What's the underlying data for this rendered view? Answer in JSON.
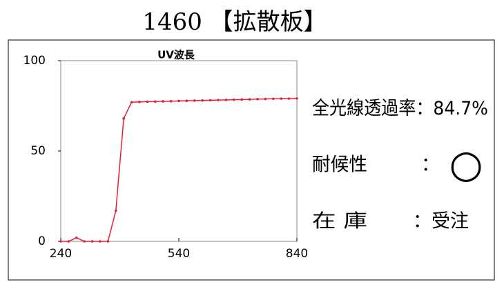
{
  "header": {
    "title": "1460 【拡散板】"
  },
  "chart_data": {
    "type": "line",
    "title": "UV波長",
    "x": [
      240,
      260,
      280,
      300,
      320,
      340,
      360,
      380,
      400,
      420,
      440,
      460,
      480,
      500,
      520,
      540,
      560,
      580,
      600,
      620,
      640,
      660,
      680,
      700,
      720,
      740,
      760,
      780,
      800,
      820,
      840
    ],
    "series": [
      {
        "color": "#e0203c",
        "values": [
          0,
          0,
          2,
          0,
          0,
          0,
          0,
          17,
          68,
          77,
          77.2,
          77.3,
          77.4,
          77.5,
          77.6,
          77.7,
          77.8,
          77.9,
          78,
          78.1,
          78.2,
          78.3,
          78.4,
          78.5,
          78.6,
          78.7,
          78.8,
          78.9,
          79,
          79,
          79.1
        ]
      }
    ],
    "xlim": [
      240,
      840
    ],
    "xticks": [
      240,
      540,
      840
    ],
    "ylim": [
      0,
      100
    ],
    "yticks": [
      0,
      50,
      100
    ],
    "grid": false
  },
  "info": [
    {
      "label": "全光線透過率",
      "value": "：84.7%"
    },
    {
      "label": "耐候性",
      "value": "：",
      "mark": "○"
    },
    {
      "label": "在 庫",
      "value": "：受注"
    }
  ]
}
